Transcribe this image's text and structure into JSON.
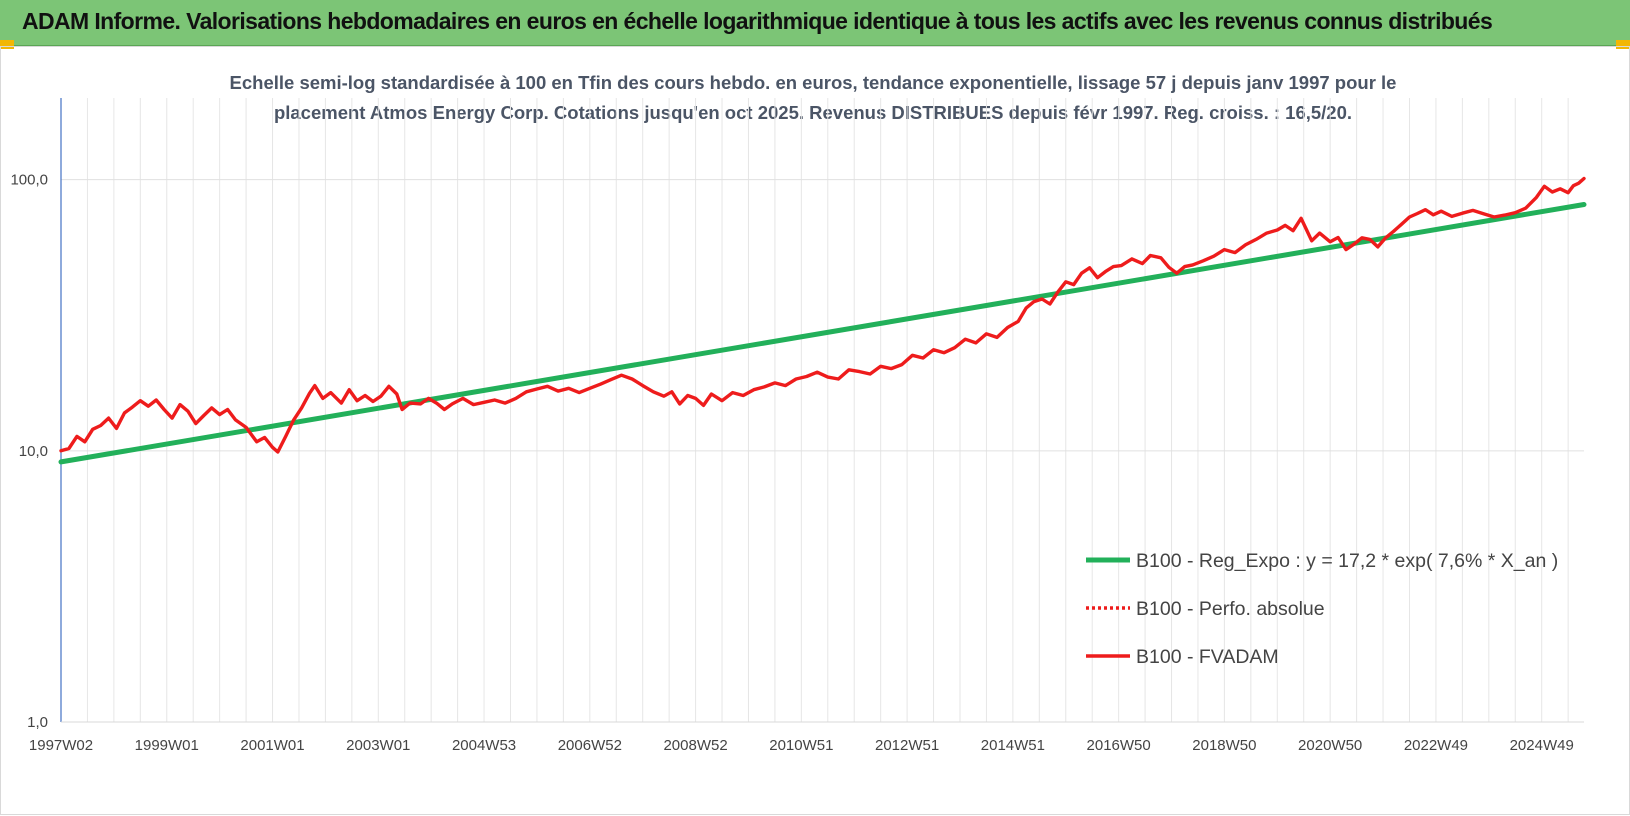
{
  "banner": {
    "title": "ADAM Informe. Valorisations hebdomadaires en euros en échelle logarithmique identique à tous les actifs avec les revenus connus distribués",
    "color": "#7cc576"
  },
  "chart_data": {
    "type": "line",
    "title_lines": [
      "Echelle semi-log standardisée à 100 en Tfin des cours hebdo. en euros, tendance exponentielle, lissage 57 j depuis janv 1997 pour le",
      "placement Atmos Energy Corp. Cotations jusqu'en oct 2025. Revenus DISTRIBUES depuis févr 1997. Reg. croiss. : 16,5/20."
    ],
    "xlabel": "",
    "ylabel": "",
    "y_scale": "log",
    "ylim": [
      1,
      200
    ],
    "y_ticks": [
      {
        "value": 1,
        "label": "1,0"
      },
      {
        "value": 10,
        "label": "10,0"
      },
      {
        "value": 100,
        "label": "100,0"
      }
    ],
    "xlim": [
      1997.0,
      2025.8
    ],
    "x_ticks": [
      {
        "value": 1997.0,
        "label": "1997W02"
      },
      {
        "value": 1999.0,
        "label": "1999W01"
      },
      {
        "value": 2001.0,
        "label": "2001W01"
      },
      {
        "value": 2003.0,
        "label": "2003W01"
      },
      {
        "value": 2005.0,
        "label": "2004W53"
      },
      {
        "value": 2007.0,
        "label": "2006W52"
      },
      {
        "value": 2009.0,
        "label": "2008W52"
      },
      {
        "value": 2011.0,
        "label": "2010W51"
      },
      {
        "value": 2013.0,
        "label": "2012W51"
      },
      {
        "value": 2015.0,
        "label": "2014W51"
      },
      {
        "value": 2017.0,
        "label": "2016W50"
      },
      {
        "value": 2019.0,
        "label": "2018W50"
      },
      {
        "value": 2021.0,
        "label": "2020W50"
      },
      {
        "value": 2023.0,
        "label": "2022W49"
      },
      {
        "value": 2025.0,
        "label": "2024W49"
      }
    ],
    "grid": true,
    "legend_position": "bottom-right",
    "series": [
      {
        "name": "B100 - Reg_Expo : y = 17,2 * exp( 7,6% *  X_an )",
        "color": "#22b05a",
        "style": "solid",
        "points": [
          [
            1997.0,
            9.1
          ],
          [
            2025.8,
            81.0
          ]
        ]
      },
      {
        "name": "B100 - Perfo. absolue",
        "color": "#ee1c1c",
        "style": "dotted",
        "points": []
      },
      {
        "name": "B100 - FVADAM",
        "color": "#ee1c1c",
        "style": "solid",
        "points": [
          [
            1997.0,
            10.0
          ],
          [
            1997.15,
            10.2
          ],
          [
            1997.3,
            11.3
          ],
          [
            1997.45,
            10.8
          ],
          [
            1997.6,
            12.0
          ],
          [
            1997.75,
            12.4
          ],
          [
            1997.9,
            13.2
          ],
          [
            1998.05,
            12.1
          ],
          [
            1998.2,
            13.8
          ],
          [
            1998.35,
            14.5
          ],
          [
            1998.5,
            15.3
          ],
          [
            1998.65,
            14.6
          ],
          [
            1998.8,
            15.4
          ],
          [
            1998.95,
            14.2
          ],
          [
            1999.1,
            13.2
          ],
          [
            1999.25,
            14.8
          ],
          [
            1999.4,
            14.0
          ],
          [
            1999.55,
            12.6
          ],
          [
            1999.7,
            13.5
          ],
          [
            1999.85,
            14.4
          ],
          [
            2000.0,
            13.6
          ],
          [
            2000.15,
            14.2
          ],
          [
            2000.3,
            13.0
          ],
          [
            2000.5,
            12.2
          ],
          [
            2000.7,
            10.8
          ],
          [
            2000.85,
            11.2
          ],
          [
            2001.0,
            10.3
          ],
          [
            2001.1,
            9.9
          ],
          [
            2001.25,
            11.3
          ],
          [
            2001.4,
            13.0
          ],
          [
            2001.55,
            14.4
          ],
          [
            2001.7,
            16.3
          ],
          [
            2001.8,
            17.4
          ],
          [
            2001.95,
            15.6
          ],
          [
            2002.1,
            16.4
          ],
          [
            2002.3,
            15.0
          ],
          [
            2002.45,
            16.8
          ],
          [
            2002.6,
            15.3
          ],
          [
            2002.75,
            16.0
          ],
          [
            2002.9,
            15.2
          ],
          [
            2003.05,
            15.9
          ],
          [
            2003.2,
            17.3
          ],
          [
            2003.35,
            16.2
          ],
          [
            2003.45,
            14.2
          ],
          [
            2003.6,
            15.0
          ],
          [
            2003.8,
            14.9
          ],
          [
            2003.95,
            15.6
          ],
          [
            2004.1,
            15.0
          ],
          [
            2004.25,
            14.2
          ],
          [
            2004.4,
            14.9
          ],
          [
            2004.6,
            15.6
          ],
          [
            2004.8,
            14.8
          ],
          [
            2005.0,
            15.1
          ],
          [
            2005.2,
            15.4
          ],
          [
            2005.4,
            15.0
          ],
          [
            2005.6,
            15.6
          ],
          [
            2005.8,
            16.5
          ],
          [
            2006.0,
            16.9
          ],
          [
            2006.2,
            17.3
          ],
          [
            2006.4,
            16.6
          ],
          [
            2006.6,
            17.0
          ],
          [
            2006.8,
            16.4
          ],
          [
            2007.0,
            17.0
          ],
          [
            2007.2,
            17.6
          ],
          [
            2007.4,
            18.3
          ],
          [
            2007.6,
            19.0
          ],
          [
            2007.8,
            18.4
          ],
          [
            2008.0,
            17.4
          ],
          [
            2008.2,
            16.5
          ],
          [
            2008.4,
            15.9
          ],
          [
            2008.55,
            16.5
          ],
          [
            2008.7,
            14.9
          ],
          [
            2008.85,
            16.0
          ],
          [
            2009.0,
            15.6
          ],
          [
            2009.15,
            14.7
          ],
          [
            2009.3,
            16.2
          ],
          [
            2009.5,
            15.3
          ],
          [
            2009.7,
            16.4
          ],
          [
            2009.9,
            16.0
          ],
          [
            2010.1,
            16.8
          ],
          [
            2010.3,
            17.2
          ],
          [
            2010.5,
            17.8
          ],
          [
            2010.7,
            17.4
          ],
          [
            2010.9,
            18.4
          ],
          [
            2011.1,
            18.8
          ],
          [
            2011.3,
            19.5
          ],
          [
            2011.5,
            18.7
          ],
          [
            2011.7,
            18.4
          ],
          [
            2011.9,
            19.9
          ],
          [
            2012.1,
            19.6
          ],
          [
            2012.3,
            19.2
          ],
          [
            2012.5,
            20.5
          ],
          [
            2012.7,
            20.1
          ],
          [
            2012.9,
            20.8
          ],
          [
            2013.1,
            22.5
          ],
          [
            2013.3,
            22.0
          ],
          [
            2013.5,
            23.6
          ],
          [
            2013.7,
            23.0
          ],
          [
            2013.9,
            24.0
          ],
          [
            2014.1,
            25.8
          ],
          [
            2014.3,
            25.0
          ],
          [
            2014.5,
            27.0
          ],
          [
            2014.7,
            26.2
          ],
          [
            2014.9,
            28.5
          ],
          [
            2015.1,
            30.0
          ],
          [
            2015.25,
            33.6
          ],
          [
            2015.4,
            35.5
          ],
          [
            2015.55,
            36.3
          ],
          [
            2015.7,
            34.8
          ],
          [
            2015.85,
            38.5
          ],
          [
            2016.0,
            42.0
          ],
          [
            2016.15,
            41.0
          ],
          [
            2016.3,
            45.2
          ],
          [
            2016.45,
            47.3
          ],
          [
            2016.6,
            43.5
          ],
          [
            2016.75,
            45.8
          ],
          [
            2016.9,
            47.8
          ],
          [
            2017.05,
            48.2
          ],
          [
            2017.25,
            51.0
          ],
          [
            2017.45,
            49.0
          ],
          [
            2017.6,
            52.5
          ],
          [
            2017.8,
            51.5
          ],
          [
            2017.95,
            47.5
          ],
          [
            2018.1,
            45.2
          ],
          [
            2018.25,
            47.8
          ],
          [
            2018.4,
            48.5
          ],
          [
            2018.6,
            50.2
          ],
          [
            2018.8,
            52.2
          ],
          [
            2019.0,
            55.2
          ],
          [
            2019.2,
            53.8
          ],
          [
            2019.4,
            57.5
          ],
          [
            2019.6,
            60.2
          ],
          [
            2019.8,
            63.5
          ],
          [
            2020.0,
            65.2
          ],
          [
            2020.15,
            67.8
          ],
          [
            2020.3,
            64.8
          ],
          [
            2020.45,
            72.0
          ],
          [
            2020.55,
            65.5
          ],
          [
            2020.65,
            59.5
          ],
          [
            2020.8,
            63.5
          ],
          [
            2021.0,
            59.0
          ],
          [
            2021.15,
            61.2
          ],
          [
            2021.3,
            55.2
          ],
          [
            2021.45,
            57.8
          ],
          [
            2021.6,
            61.0
          ],
          [
            2021.75,
            60.2
          ],
          [
            2021.9,
            56.5
          ],
          [
            2022.05,
            61.0
          ],
          [
            2022.2,
            64.5
          ],
          [
            2022.35,
            68.5
          ],
          [
            2022.5,
            72.8
          ],
          [
            2022.65,
            75.0
          ],
          [
            2022.8,
            77.5
          ],
          [
            2022.95,
            74.2
          ],
          [
            2023.1,
            76.5
          ],
          [
            2023.3,
            73.2
          ],
          [
            2023.5,
            75.2
          ],
          [
            2023.7,
            77.0
          ],
          [
            2023.9,
            74.8
          ],
          [
            2024.1,
            72.8
          ],
          [
            2024.3,
            74.0
          ],
          [
            2024.5,
            75.5
          ],
          [
            2024.7,
            78.5
          ],
          [
            2024.9,
            86.0
          ],
          [
            2025.05,
            94.5
          ],
          [
            2025.2,
            90.0
          ],
          [
            2025.35,
            92.5
          ],
          [
            2025.5,
            89.5
          ],
          [
            2025.6,
            95.0
          ],
          [
            2025.7,
            97.0
          ],
          [
            2025.8,
            101.0
          ]
        ]
      }
    ]
  }
}
